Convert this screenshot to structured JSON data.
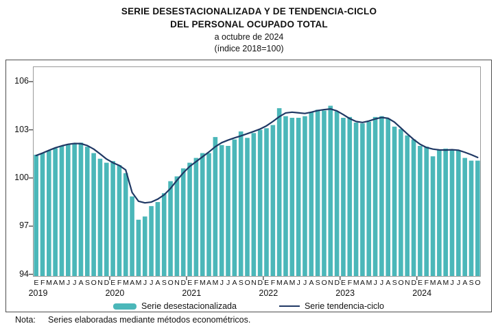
{
  "title": {
    "line1": "SERIE DESESTACIONALIZADA Y DE TENDENCIA-CICLO",
    "line2": "DEL PERSONAL OCUPADO TOTAL",
    "line3": "a octubre de 2024",
    "line4": "(índice 2018=100)"
  },
  "legend": {
    "bar_label": "Serie desestacionalizada",
    "line_label": "Serie tendencia-ciclo"
  },
  "note": {
    "label": "Nota:",
    "text": "Series elaboradas mediante métodos econométricos."
  },
  "chart_data": {
    "type": "bar",
    "overlay": "line",
    "title": "Serie desestacionalizada y de tendencia-ciclo del personal ocupado total",
    "period": "enero 2019 - octubre 2024",
    "ylim": [
      94,
      106
    ],
    "y_ticks": [
      94,
      97,
      100,
      103,
      106
    ],
    "grid": false,
    "legend_position": "bottom",
    "colors": {
      "bar": "#4bb7b9",
      "line": "#1f3864",
      "axis": "#444444",
      "plot_border": "#9a9a9a"
    },
    "years": [
      {
        "label": "2019",
        "months": [
          "E",
          "F",
          "M",
          "A",
          "M",
          "J",
          "J",
          "A",
          "S",
          "O",
          "N",
          "D"
        ]
      },
      {
        "label": "2020",
        "months": [
          "E",
          "F",
          "M",
          "A",
          "M",
          "J",
          "J",
          "A",
          "S",
          "O",
          "N",
          "D"
        ]
      },
      {
        "label": "2021",
        "months": [
          "E",
          "F",
          "M",
          "A",
          "M",
          "J",
          "J",
          "A",
          "S",
          "O",
          "N",
          "D"
        ]
      },
      {
        "label": "2022",
        "months": [
          "E",
          "F",
          "M",
          "A",
          "M",
          "J",
          "J",
          "A",
          "S",
          "O",
          "N",
          "D"
        ]
      },
      {
        "label": "2023",
        "months": [
          "E",
          "F",
          "M",
          "A",
          "M",
          "J",
          "J",
          "A",
          "S",
          "O",
          "N",
          "D"
        ]
      },
      {
        "label": "2024",
        "months": [
          "E",
          "F",
          "M",
          "A",
          "M",
          "J",
          "J",
          "A",
          "S",
          "O"
        ]
      }
    ],
    "series": [
      {
        "name": "Serie desestacionalizada",
        "style": "bar",
        "values": [
          101.45,
          101.55,
          101.7,
          101.85,
          102.0,
          102.1,
          102.15,
          102.2,
          101.95,
          101.55,
          101.2,
          100.95,
          101.05,
          100.8,
          100.3,
          98.85,
          97.4,
          97.6,
          98.25,
          98.5,
          99.05,
          99.8,
          100.1,
          100.6,
          100.95,
          101.25,
          101.55,
          101.55,
          102.55,
          102.05,
          102.0,
          102.4,
          102.9,
          102.5,
          102.8,
          103.0,
          103.1,
          103.3,
          104.35,
          103.85,
          103.75,
          103.75,
          103.85,
          104.1,
          104.25,
          104.2,
          104.5,
          104.15,
          103.75,
          103.8,
          103.45,
          103.4,
          103.5,
          103.8,
          103.85,
          103.7,
          103.2,
          103.05,
          102.65,
          102.4,
          102.0,
          101.95,
          101.35,
          101.75,
          101.83,
          101.75,
          101.7,
          101.25,
          101.08,
          101.08
        ]
      },
      {
        "name": "Serie tendencia-ciclo",
        "style": "line",
        "values": [
          101.4,
          101.55,
          101.72,
          101.88,
          102.0,
          102.1,
          102.15,
          102.14,
          102.02,
          101.8,
          101.5,
          101.18,
          100.95,
          100.78,
          100.5,
          99.1,
          98.55,
          98.45,
          98.5,
          98.68,
          98.95,
          99.35,
          99.85,
          100.32,
          100.72,
          101.02,
          101.32,
          101.62,
          101.95,
          102.2,
          102.36,
          102.5,
          102.62,
          102.76,
          102.9,
          103.05,
          103.25,
          103.52,
          103.82,
          104.05,
          104.1,
          104.06,
          104.02,
          104.1,
          104.2,
          104.26,
          104.3,
          104.18,
          103.95,
          103.7,
          103.52,
          103.46,
          103.55,
          103.68,
          103.77,
          103.72,
          103.48,
          103.12,
          102.75,
          102.4,
          102.1,
          101.9,
          101.8,
          101.75,
          101.74,
          101.76,
          101.73,
          101.6,
          101.45,
          101.28
        ]
      }
    ]
  }
}
